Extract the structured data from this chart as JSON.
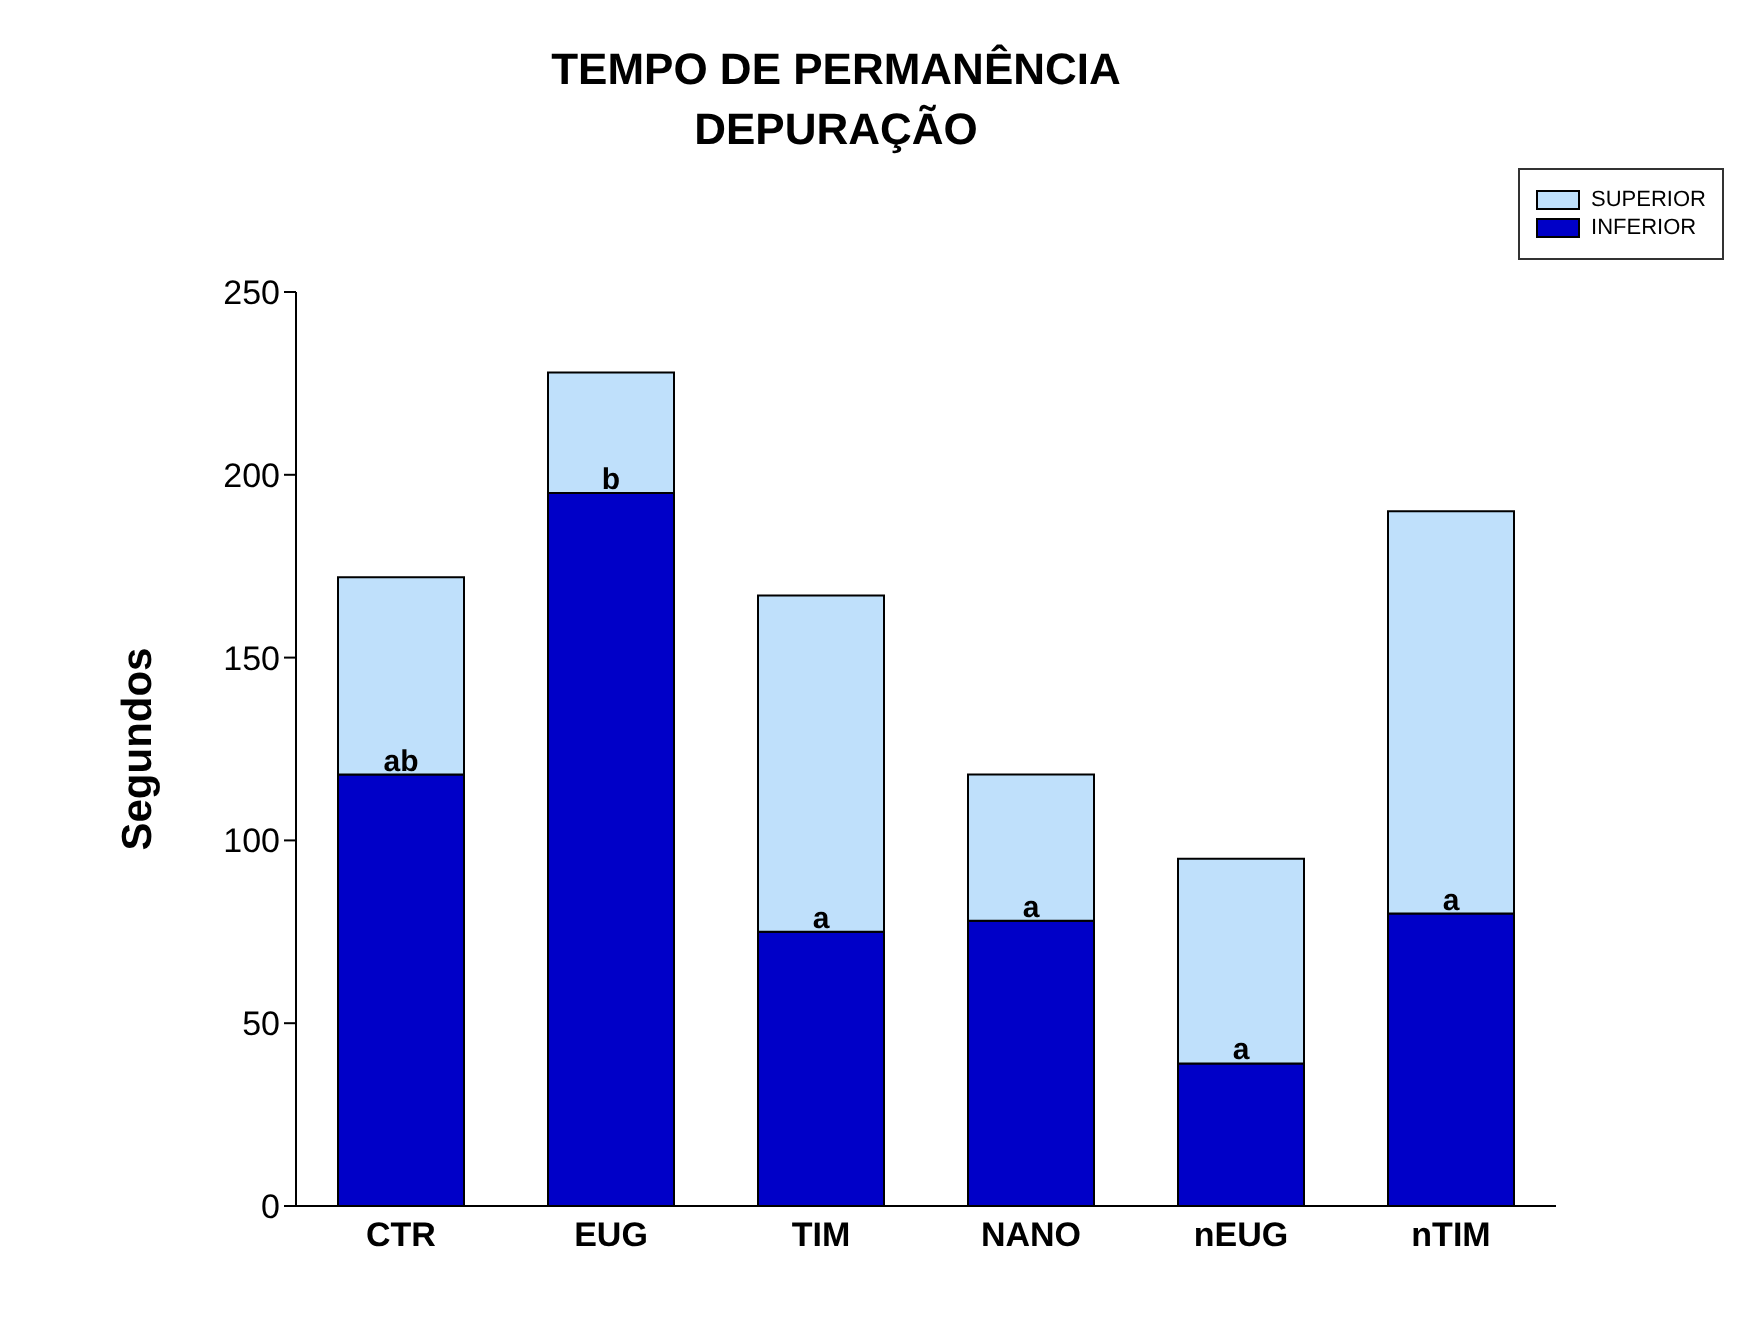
{
  "chart_data": {
    "type": "bar",
    "title": "TEMPO DE PERMANÊNCIA\nDEPURAÇÃO",
    "ylabel": "Segundos",
    "categories": [
      "CTR",
      "EUG",
      "TIM",
      "NANO",
      "nEUG",
      "nTIM"
    ],
    "stacked": true,
    "series": [
      {
        "name": "INFERIOR",
        "color": "#0000c8",
        "values": [
          118,
          195,
          75,
          78,
          39,
          80
        ]
      },
      {
        "name": "SUPERIOR",
        "color": "#bfe0fb",
        "values": [
          54,
          33,
          92,
          40,
          56,
          110
        ]
      }
    ],
    "ylim": [
      0,
      250
    ],
    "yticks": [
      0,
      50,
      100,
      150,
      200,
      250
    ],
    "grid": false,
    "legend": "top right",
    "annotations": [
      {
        "text": "ab",
        "x": "CTR",
        "y": 118
      },
      {
        "text": "b",
        "x": "EUG",
        "y": 195
      },
      {
        "text": "a",
        "x": "TIM",
        "y": 75
      },
      {
        "text": "a",
        "x": "NANO",
        "y": 78
      },
      {
        "text": "a",
        "x": "nEUG",
        "y": 39
      },
      {
        "text": "a",
        "x": "nTIM",
        "y": 80
      }
    ]
  }
}
